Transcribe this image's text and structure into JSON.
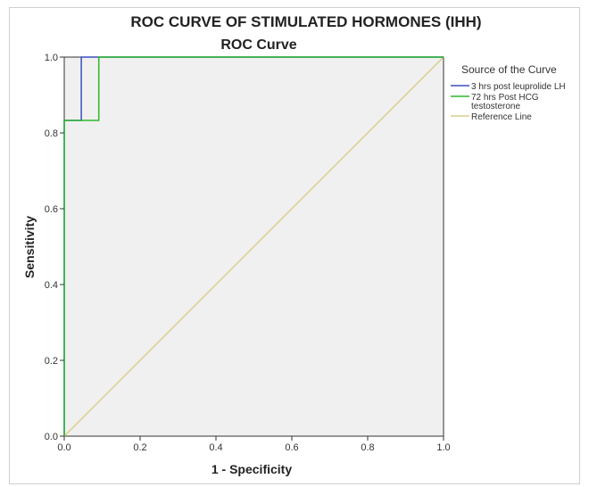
{
  "chart_data": {
    "type": "line",
    "title": "ROC CURVE OF STIMULATED HORMONES (IHH)",
    "subtitle": "ROC Curve",
    "xlabel": "1 - Specificity",
    "ylabel": "Sensitivity",
    "xlim": [
      0,
      1
    ],
    "ylim": [
      0,
      1
    ],
    "x_ticks": [
      "0.0",
      "0.2",
      "0.4",
      "0.6",
      "0.8",
      "1.0"
    ],
    "y_ticks": [
      "0.0",
      "0.2",
      "0.4",
      "0.6",
      "0.8",
      "1.0"
    ],
    "grid": false,
    "background": "#f0f0f0",
    "legend": {
      "title": "Source of the Curve",
      "placement": "right"
    },
    "series": [
      {
        "name": "3 hrs post leuprolide LH",
        "color": "#3a4fbf",
        "points": [
          [
            0,
            0
          ],
          [
            0,
            0.833
          ],
          [
            0.045,
            0.833
          ],
          [
            0.045,
            1.0
          ],
          [
            1.0,
            1.0
          ]
        ]
      },
      {
        "name": "72 hrs Post HCG testosterone",
        "name_lines": [
          "72 hrs Post HCG",
          "testosterone"
        ],
        "color": "#2db82d",
        "points": [
          [
            0,
            0
          ],
          [
            0,
            0.833
          ],
          [
            0.091,
            0.833
          ],
          [
            0.091,
            1.0
          ],
          [
            1.0,
            1.0
          ]
        ]
      },
      {
        "name": "Reference Line",
        "color": "#d8cf8a",
        "points": [
          [
            0,
            0
          ],
          [
            1,
            1
          ]
        ]
      }
    ]
  }
}
